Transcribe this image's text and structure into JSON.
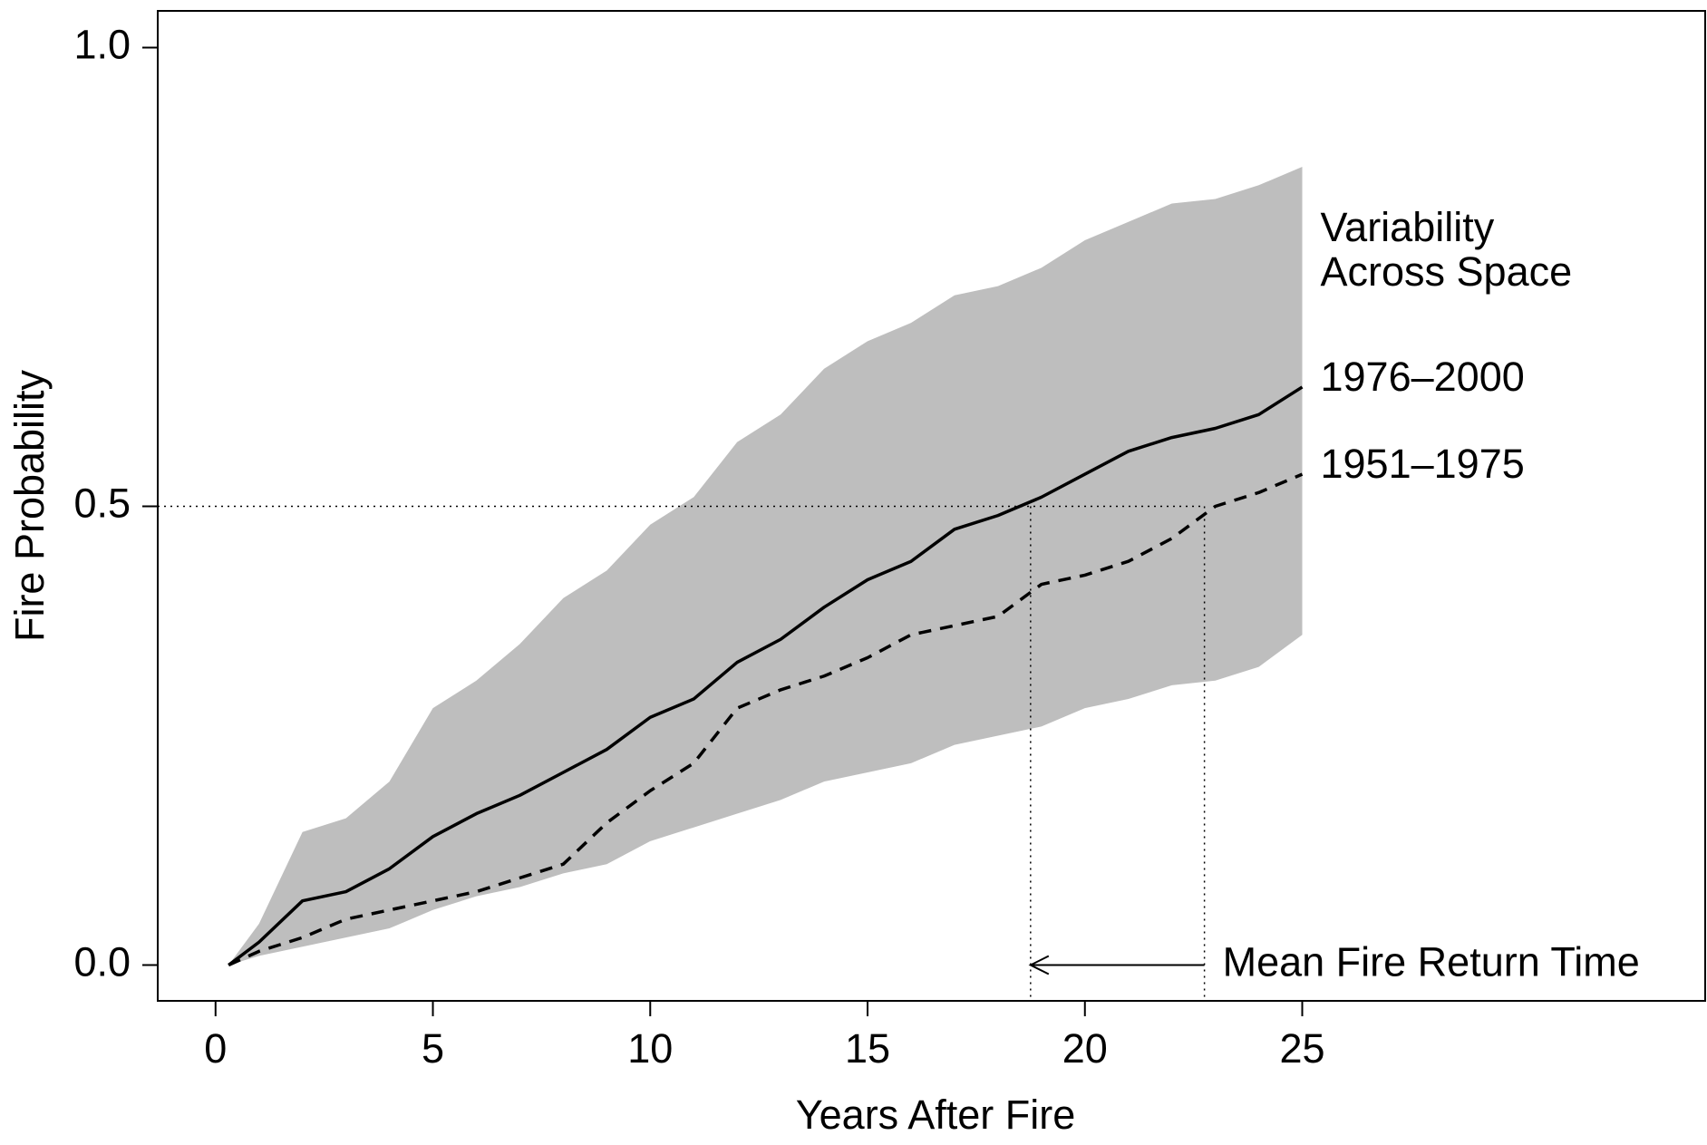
{
  "chart_data": {
    "type": "line",
    "xlabel": "Years After Fire",
    "ylabel": "Fire Probability",
    "x": [
      0.3,
      1,
      2,
      3,
      4,
      5,
      6,
      7,
      8,
      9,
      10,
      11,
      12,
      13,
      14,
      15,
      16,
      17,
      18,
      19,
      20,
      21,
      22,
      23,
      24,
      25
    ],
    "series": [
      {
        "name": "1976–2000",
        "color": "#000000",
        "dash": "solid",
        "values": [
          0,
          0.025,
          0.07,
          0.08,
          0.105,
          0.14,
          0.165,
          0.185,
          0.21,
          0.235,
          0.27,
          0.29,
          0.33,
          0.355,
          0.39,
          0.42,
          0.44,
          0.475,
          0.49,
          0.51,
          0.535,
          0.56,
          0.575,
          0.585,
          0.6,
          0.63
        ]
      },
      {
        "name": "1951–1975",
        "color": "#000000",
        "dash": "dashed",
        "values": [
          0,
          0.015,
          0.03,
          0.05,
          0.06,
          0.07,
          0.08,
          0.095,
          0.11,
          0.155,
          0.19,
          0.22,
          0.28,
          0.3,
          0.315,
          0.335,
          0.36,
          0.37,
          0.38,
          0.415,
          0.425,
          0.44,
          0.465,
          0.5,
          0.515,
          0.535
        ]
      }
    ],
    "band": {
      "label_lines": [
        "Variability",
        "Across Space"
      ],
      "color": "#bebebe",
      "upper": [
        0,
        0.045,
        0.145,
        0.16,
        0.2,
        0.28,
        0.31,
        0.35,
        0.4,
        0.43,
        0.48,
        0.51,
        0.57,
        0.6,
        0.65,
        0.68,
        0.7,
        0.73,
        0.74,
        0.76,
        0.79,
        0.81,
        0.83,
        0.835,
        0.85,
        0.87
      ],
      "lower": [
        0,
        0.01,
        0.02,
        0.03,
        0.04,
        0.06,
        0.075,
        0.085,
        0.1,
        0.11,
        0.135,
        0.15,
        0.165,
        0.18,
        0.2,
        0.21,
        0.22,
        0.24,
        0.25,
        0.26,
        0.28,
        0.29,
        0.305,
        0.31,
        0.325,
        0.36
      ]
    },
    "reference_y": 0.5,
    "return_times": [
      18.75,
      22.75
    ],
    "annotation": "Mean Fire Return Time",
    "xlim": [
      -1.33,
      34.27
    ],
    "ylim": [
      -0.039,
      1.04
    ],
    "xticks": [
      0,
      5,
      10,
      15,
      20,
      25
    ],
    "yticks": [
      {
        "value": 0,
        "label": "0.0"
      },
      {
        "value": 0.5,
        "label": "0.5"
      },
      {
        "value": 1,
        "label": "1.0"
      }
    ]
  }
}
